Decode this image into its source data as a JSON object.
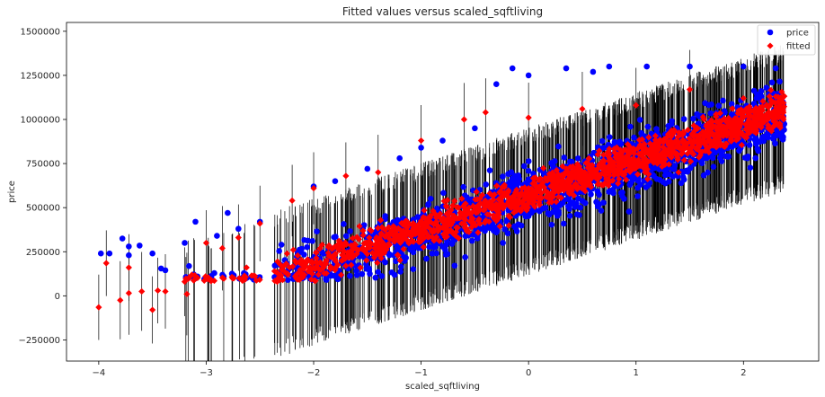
{
  "chart_data": {
    "type": "scatter",
    "title": "Fitted values versus scaled_sqftliving",
    "xlabel": "scaled_sqftliving",
    "ylabel": "price",
    "xlim": [
      -4.3,
      2.7
    ],
    "ylim": [
      -370000,
      1550000
    ],
    "x_ticks": [
      -4,
      -3,
      -2,
      -1,
      0,
      1,
      2
    ],
    "x_tick_labels": [
      "−4",
      "−3",
      "−2",
      "−1",
      "0",
      "1",
      "2"
    ],
    "y_ticks": [
      -250000,
      0,
      250000,
      500000,
      750000,
      1000000,
      1250000,
      1500000
    ],
    "y_tick_labels": [
      "−250000",
      "0",
      "250000",
      "500000",
      "750000",
      "1000000",
      "1250000",
      "1500000"
    ],
    "grid": false,
    "legend_position": "top-right",
    "fit": {
      "intercept": 515000,
      "slope": 200000
    },
    "series": [
      {
        "name": "price",
        "marker": "circle",
        "color": "#0000ff",
        "points": [
          [
            -3.98,
            240000
          ],
          [
            -3.9,
            240000
          ],
          [
            -3.78,
            325000
          ],
          [
            -3.72,
            280000
          ],
          [
            -3.72,
            230000
          ],
          [
            -3.62,
            285000
          ],
          [
            -3.5,
            240000
          ],
          [
            -3.42,
            155000
          ],
          [
            -3.38,
            145000
          ],
          [
            -3.2,
            300000
          ],
          [
            -3.1,
            420000
          ],
          [
            -3.0,
            100000
          ],
          [
            -2.9,
            340000
          ],
          [
            -2.8,
            470000
          ],
          [
            -2.7,
            380000
          ],
          [
            -2.5,
            420000
          ],
          [
            -2.3,
            290000
          ],
          [
            -2.0,
            620000
          ],
          [
            -1.8,
            650000
          ],
          [
            -1.5,
            720000
          ],
          [
            -1.2,
            780000
          ],
          [
            -1.0,
            840000
          ],
          [
            -0.8,
            880000
          ],
          [
            -0.5,
            950000
          ],
          [
            -0.3,
            1200000
          ],
          [
            -0.15,
            1290000
          ],
          [
            0.0,
            1250000
          ],
          [
            0.35,
            1290000
          ],
          [
            0.6,
            1270000
          ],
          [
            0.75,
            1300000
          ],
          [
            1.1,
            1300000
          ],
          [
            1.5,
            1300000
          ],
          [
            2.0,
            1300000
          ],
          [
            2.3,
            1290000
          ]
        ]
      },
      {
        "name": "fitted",
        "marker": "diamond",
        "color": "#ff0000",
        "points": [
          [
            -4.0,
            -65000
          ],
          [
            -3.93,
            185000
          ],
          [
            -3.8,
            -25000
          ],
          [
            -3.72,
            15000
          ],
          [
            -3.72,
            160000
          ],
          [
            -3.6,
            25000
          ],
          [
            -3.5,
            -80000
          ],
          [
            -3.45,
            30000
          ],
          [
            -3.38,
            25000
          ],
          [
            -3.2,
            80000
          ],
          [
            -3.18,
            10000
          ],
          [
            -3.0,
            300000
          ],
          [
            -2.85,
            270000
          ],
          [
            -2.7,
            330000
          ],
          [
            -2.5,
            410000
          ],
          [
            -2.2,
            540000
          ],
          [
            -2.0,
            610000
          ],
          [
            -1.7,
            680000
          ],
          [
            -1.4,
            700000
          ],
          [
            -1.0,
            880000
          ],
          [
            -0.6,
            1000000
          ],
          [
            -0.4,
            1040000
          ],
          [
            0.0,
            1010000
          ],
          [
            0.5,
            1060000
          ],
          [
            1.0,
            1080000
          ],
          [
            1.5,
            1170000
          ],
          [
            2.0,
            1120000
          ],
          [
            2.3,
            1130000
          ]
        ]
      }
    ]
  }
}
